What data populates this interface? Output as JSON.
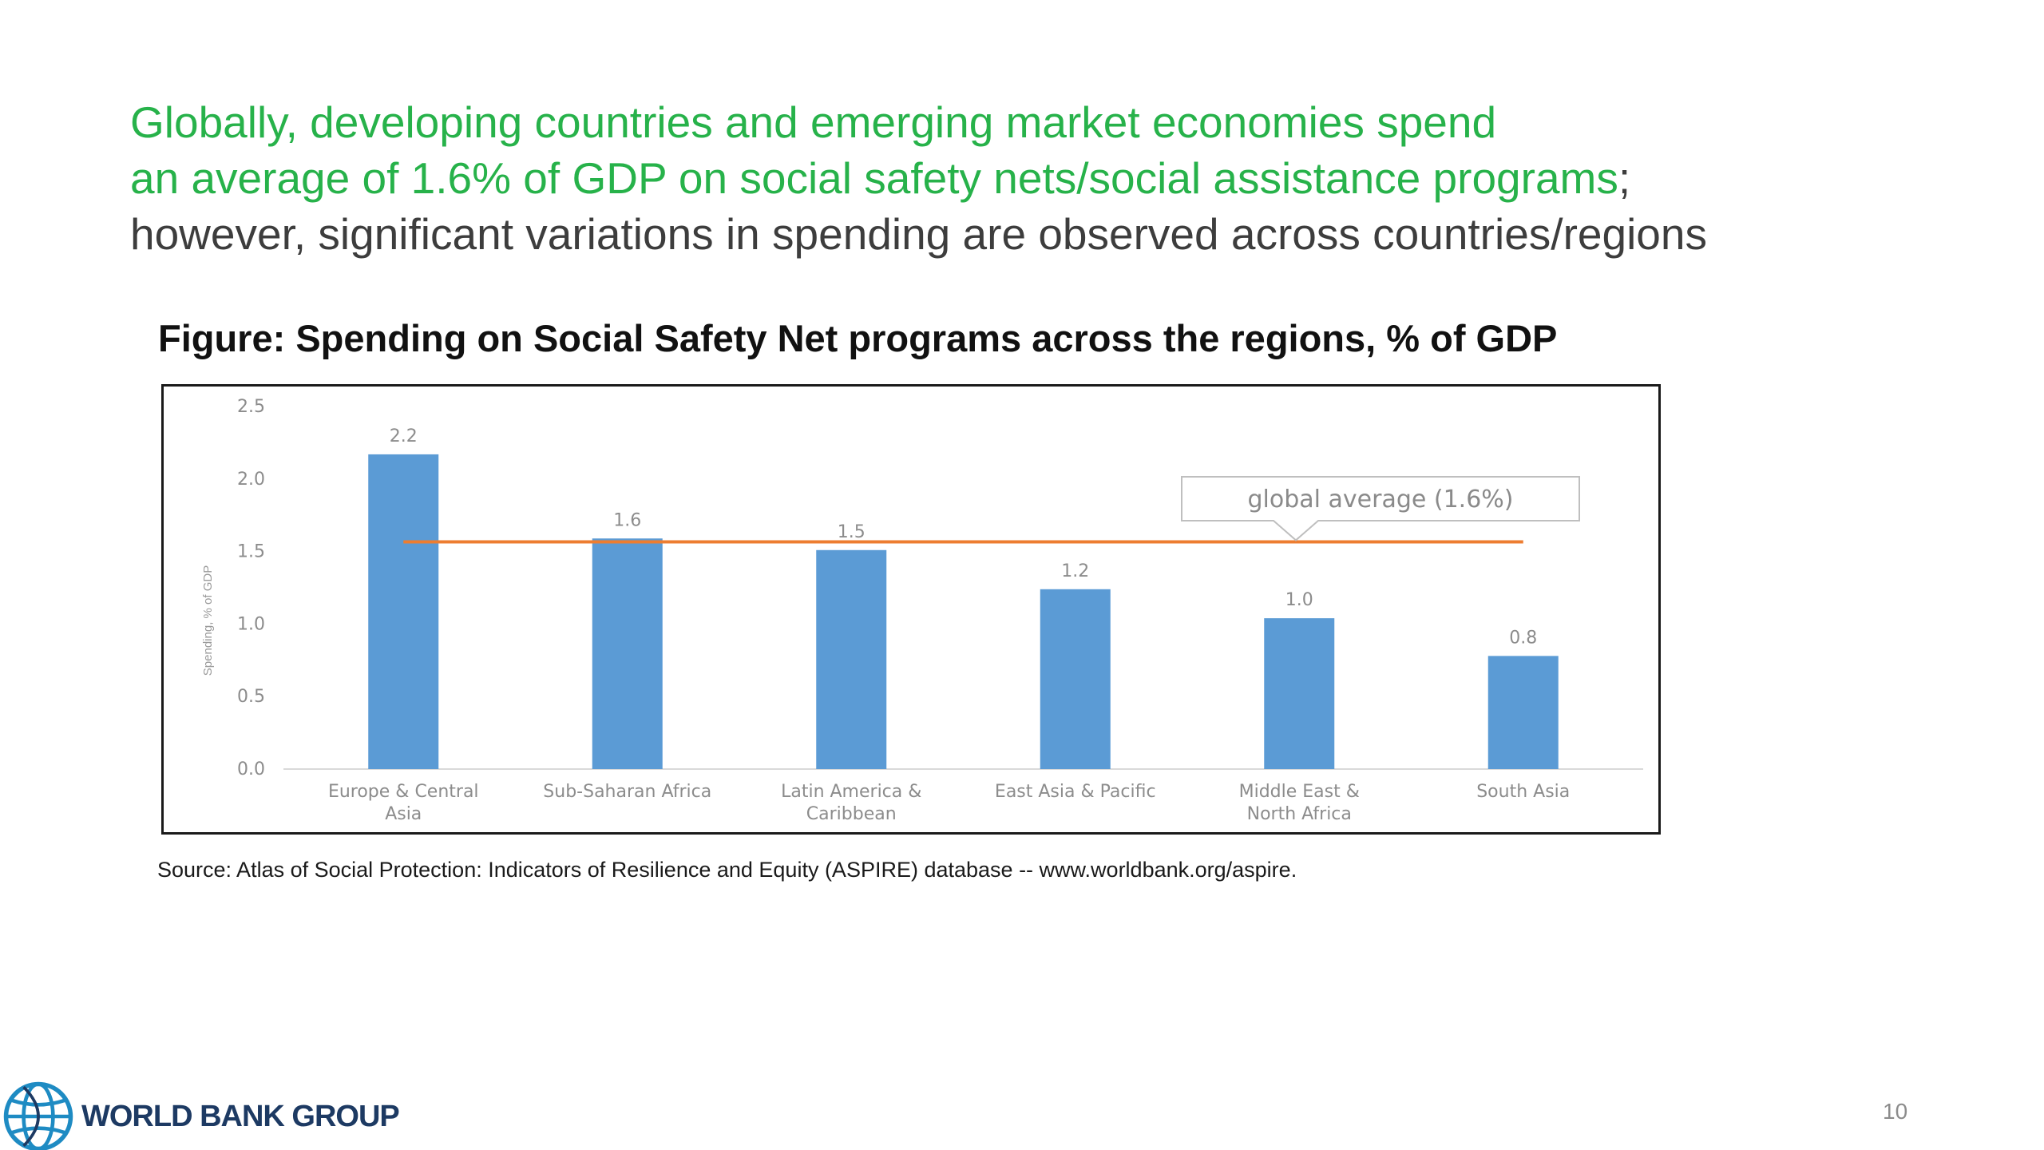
{
  "headline": {
    "line1": "Globally, developing countries and emerging market economies spend",
    "line2": "an average of 1.6% of GDP on social safety nets/social assistance programs",
    "line2_suffix": ";",
    "line3": "however, significant variations in spending are observed across countries/regions"
  },
  "figure_title": "Figure: Spending on Social Safety Net programs across the regions, % of GDP",
  "source": "Source: Atlas of Social Protection: Indicators of Resilience and Equity (ASPIRE) database -- www.worldbank.org/aspire.",
  "logo": {
    "text": "WORLD BANK GROUP",
    "icon": "globe-icon"
  },
  "page_number": "10",
  "colors": {
    "headline_green": "#27b24a",
    "bar": "#5b9bd5",
    "average_line": "#ed7d31"
  },
  "chart_data": {
    "type": "bar",
    "categories": [
      [
        "Europe & Central",
        "Asia"
      ],
      [
        "Sub-Saharan Africa"
      ],
      [
        "Latin America &",
        "Caribbean"
      ],
      [
        "East Asia & Pacific"
      ],
      [
        "Middle East &",
        "North Africa"
      ],
      [
        "South Asia"
      ]
    ],
    "values": [
      2.2,
      1.6,
      1.5,
      1.2,
      1.0,
      0.8
    ],
    "data_labels": [
      "2.2",
      "1.6",
      "1.5",
      "1.2",
      "1.0",
      "0.8"
    ],
    "bar_heights_data": [
      2.17,
      1.59,
      1.51,
      1.24,
      1.04,
      0.78
    ],
    "ylabel": "Spending, % of GDP",
    "yticks": [
      "0.0",
      "0.5",
      "1.0",
      "1.5",
      "2.0",
      "2.5"
    ],
    "ylim": [
      0,
      2.5
    ],
    "reference_line": {
      "value": 1.6,
      "label": "global average (1.6%)"
    },
    "grid": false,
    "legend": "none"
  }
}
